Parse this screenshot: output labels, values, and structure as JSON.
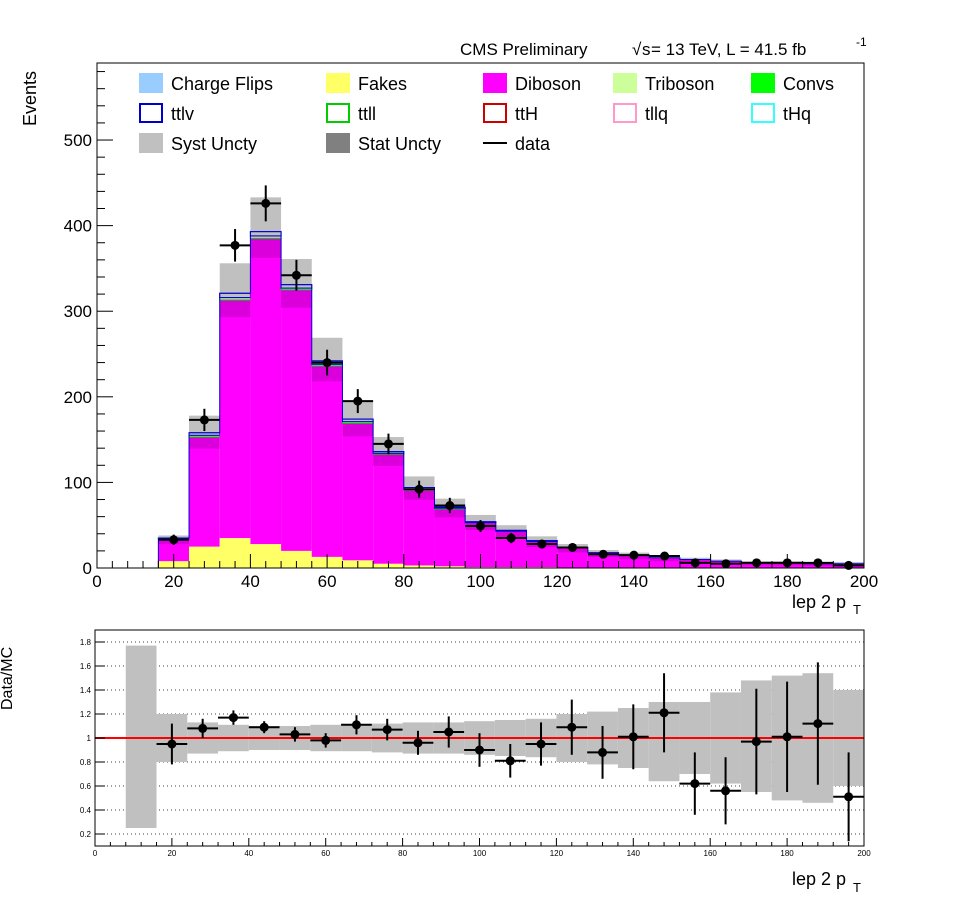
{
  "header": {
    "experiment": "CMS Preliminary",
    "sqrt_s": "s",
    "energy_lumi": " = 13 TeV, L = 41.5 fb",
    "lumi_exp": "-1"
  },
  "legend": [
    {
      "label": "Charge Flips",
      "style": "fill",
      "color": "#99ccff"
    },
    {
      "label": "Fakes",
      "style": "fill",
      "color": "#ffff66"
    },
    {
      "label": "Diboson",
      "style": "fill",
      "color": "#ff00ff"
    },
    {
      "label": "Triboson",
      "style": "fill",
      "color": "#ccff99"
    },
    {
      "label": "Convs",
      "style": "fill",
      "color": "#00ff00"
    },
    {
      "label": "ttlv",
      "style": "outline",
      "color": "#0000cc"
    },
    {
      "label": "ttll",
      "style": "outline",
      "color": "#00cc00"
    },
    {
      "label": "ttH",
      "style": "outline",
      "color": "#cc0000"
    },
    {
      "label": "tllq",
      "style": "outline",
      "color": "#ff99cc"
    },
    {
      "label": "tHq",
      "style": "outline",
      "color": "#33ffff"
    },
    {
      "label": "Syst Uncty",
      "style": "fill",
      "color": "#c0c0c0"
    },
    {
      "label": "Stat Uncty",
      "style": "fill",
      "color": "#808080"
    },
    {
      "label": "data",
      "style": "line",
      "color": "#000000"
    }
  ],
  "colors": {
    "diboson": "#ff00ff",
    "diboson_stat": "#cc00cc",
    "fakes": "#ffff66",
    "syst": "#c0c0c0",
    "ttlv": "#0000cc",
    "ttll": "#00cc00",
    "ratio_line": "#ff0000"
  },
  "chart_data": [
    {
      "type": "bar",
      "panel": "main",
      "ylabel": "Events",
      "xlabel": "lep 2 p",
      "xlabel_sub": "T",
      "xlim": [
        0,
        200
      ],
      "ylim": [
        0,
        590
      ],
      "x_ticks": [
        0,
        20,
        40,
        60,
        80,
        100,
        120,
        140,
        160,
        180,
        200
      ],
      "y_ticks": [
        0,
        100,
        200,
        300,
        400,
        500
      ],
      "bin_width": 8,
      "bin_edges": [
        0,
        8,
        16,
        24,
        32,
        40,
        48,
        56,
        64,
        72,
        80,
        88,
        96,
        104,
        112,
        120,
        128,
        136,
        144,
        152,
        160,
        168,
        176,
        184,
        192,
        200
      ],
      "series": [
        {
          "name": "Fakes",
          "values": [
            0,
            0,
            8,
            25,
            35,
            28,
            20,
            13,
            9,
            5,
            3,
            2,
            1,
            1,
            1,
            0,
            0,
            0,
            0,
            0,
            0,
            0,
            0,
            0,
            0
          ]
        },
        {
          "name": "Diboson",
          "values": [
            0,
            0,
            26,
            128,
            278,
            357,
            305,
            223,
            160,
            128,
            88,
            67,
            52,
            42,
            30,
            24,
            18,
            15,
            12,
            10,
            8,
            6,
            6,
            5,
            5
          ]
        },
        {
          "name": "ttlv",
          "values": [
            0,
            0,
            1,
            3,
            5,
            5,
            4,
            4,
            3,
            2,
            2,
            1,
            1,
            1,
            1,
            0,
            0,
            0,
            0,
            0,
            0,
            0,
            0,
            0,
            0
          ]
        },
        {
          "name": "ttll",
          "values": [
            0,
            0,
            0,
            2,
            3,
            3,
            2,
            2,
            2,
            1,
            1,
            1,
            0,
            0,
            0,
            0,
            0,
            0,
            0,
            0,
            0,
            0,
            0,
            0,
            0
          ]
        }
      ],
      "syst_uncertainty": [
        0,
        0,
        3,
        20,
        35,
        40,
        30,
        27,
        20,
        17,
        13,
        10,
        8,
        6,
        5,
        4,
        3,
        3,
        3,
        2,
        2,
        2,
        2,
        2,
        2
      ],
      "data": [
        {
          "x": 20,
          "y": 33,
          "err": 6
        },
        {
          "x": 28,
          "y": 173,
          "err": 13
        },
        {
          "x": 36,
          "y": 377,
          "err": 19
        },
        {
          "x": 44,
          "y": 426,
          "err": 21
        },
        {
          "x": 52,
          "y": 342,
          "err": 18
        },
        {
          "x": 60,
          "y": 240,
          "err": 15
        },
        {
          "x": 68,
          "y": 195,
          "err": 14
        },
        {
          "x": 76,
          "y": 145,
          "err": 12
        },
        {
          "x": 84,
          "y": 92,
          "err": 10
        },
        {
          "x": 92,
          "y": 73,
          "err": 9
        },
        {
          "x": 100,
          "y": 49,
          "err": 7
        },
        {
          "x": 108,
          "y": 35,
          "err": 6
        },
        {
          "x": 116,
          "y": 28,
          "err": 5
        },
        {
          "x": 124,
          "y": 24,
          "err": 5
        },
        {
          "x": 132,
          "y": 16,
          "err": 4
        },
        {
          "x": 140,
          "y": 15,
          "err": 4
        },
        {
          "x": 148,
          "y": 14,
          "err": 4
        },
        {
          "x": 156,
          "y": 6,
          "err": 3
        },
        {
          "x": 164,
          "y": 5,
          "err": 2
        },
        {
          "x": 172,
          "y": 6,
          "err": 2
        },
        {
          "x": 180,
          "y": 6,
          "err": 3
        },
        {
          "x": 188,
          "y": 6,
          "err": 3
        },
        {
          "x": 196,
          "y": 3,
          "err": 2
        }
      ]
    },
    {
      "type": "scatter",
      "panel": "ratio",
      "ylabel": "Data/MC",
      "xlabel": "lep 2 p",
      "xlabel_sub": "T",
      "xlim": [
        0,
        200
      ],
      "ylim": [
        0.1,
        1.9
      ],
      "grid": true,
      "x_ticks": [
        0,
        20,
        40,
        60,
        80,
        100,
        120,
        140,
        160,
        180,
        200
      ],
      "y_ticks": [
        "0.2",
        "0.4",
        "0.6",
        "0.8",
        "1",
        "1.2",
        "1.4",
        "1.6",
        "1.8"
      ],
      "reference_line": 1,
      "uncertainty_band": [
        {
          "x0": 8,
          "x1": 16,
          "lo": 0.25,
          "hi": 1.77
        },
        {
          "x0": 16,
          "x1": 24,
          "lo": 0.8,
          "hi": 1.2
        },
        {
          "x0": 24,
          "x1": 32,
          "lo": 0.87,
          "hi": 1.13
        },
        {
          "x0": 32,
          "x1": 40,
          "lo": 0.89,
          "hi": 1.11
        },
        {
          "x0": 40,
          "x1": 48,
          "lo": 0.9,
          "hi": 1.1
        },
        {
          "x0": 48,
          "x1": 56,
          "lo": 0.9,
          "hi": 1.1
        },
        {
          "x0": 56,
          "x1": 64,
          "lo": 0.89,
          "hi": 1.11
        },
        {
          "x0": 64,
          "x1": 72,
          "lo": 0.89,
          "hi": 1.11
        },
        {
          "x0": 72,
          "x1": 80,
          "lo": 0.88,
          "hi": 1.12
        },
        {
          "x0": 80,
          "x1": 88,
          "lo": 0.87,
          "hi": 1.13
        },
        {
          "x0": 88,
          "x1": 96,
          "lo": 0.87,
          "hi": 1.13
        },
        {
          "x0": 96,
          "x1": 104,
          "lo": 0.86,
          "hi": 1.14
        },
        {
          "x0": 104,
          "x1": 112,
          "lo": 0.85,
          "hi": 1.15
        },
        {
          "x0": 112,
          "x1": 120,
          "lo": 0.84,
          "hi": 1.16
        },
        {
          "x0": 120,
          "x1": 128,
          "lo": 0.8,
          "hi": 1.2
        },
        {
          "x0": 128,
          "x1": 136,
          "lo": 0.78,
          "hi": 1.22
        },
        {
          "x0": 136,
          "x1": 144,
          "lo": 0.75,
          "hi": 1.25
        },
        {
          "x0": 144,
          "x1": 152,
          "lo": 0.64,
          "hi": 1.3
        },
        {
          "x0": 152,
          "x1": 160,
          "lo": 0.7,
          "hi": 1.3
        },
        {
          "x0": 160,
          "x1": 168,
          "lo": 0.62,
          "hi": 1.38
        },
        {
          "x0": 168,
          "x1": 176,
          "lo": 0.55,
          "hi": 1.48
        },
        {
          "x0": 176,
          "x1": 184,
          "lo": 0.48,
          "hi": 1.52
        },
        {
          "x0": 184,
          "x1": 192,
          "lo": 0.46,
          "hi": 1.54
        },
        {
          "x0": 192,
          "x1": 200,
          "lo": 0.6,
          "hi": 1.4
        }
      ],
      "points": [
        {
          "x": 20,
          "y": 0.95,
          "err": 0.17
        },
        {
          "x": 28,
          "y": 1.08,
          "err": 0.08
        },
        {
          "x": 36,
          "y": 1.17,
          "err": 0.06
        },
        {
          "x": 44,
          "y": 1.09,
          "err": 0.05
        },
        {
          "x": 52,
          "y": 1.03,
          "err": 0.06
        },
        {
          "x": 60,
          "y": 0.98,
          "err": 0.06
        },
        {
          "x": 68,
          "y": 1.11,
          "err": 0.08
        },
        {
          "x": 76,
          "y": 1.07,
          "err": 0.09
        },
        {
          "x": 84,
          "y": 0.96,
          "err": 0.1
        },
        {
          "x": 92,
          "y": 1.05,
          "err": 0.13
        },
        {
          "x": 100,
          "y": 0.9,
          "err": 0.14
        },
        {
          "x": 108,
          "y": 0.81,
          "err": 0.14
        },
        {
          "x": 116,
          "y": 0.95,
          "err": 0.18
        },
        {
          "x": 124,
          "y": 1.09,
          "err": 0.23
        },
        {
          "x": 132,
          "y": 0.88,
          "err": 0.22
        },
        {
          "x": 140,
          "y": 1.01,
          "err": 0.27
        },
        {
          "x": 148,
          "y": 1.21,
          "err": 0.33
        },
        {
          "x": 156,
          "y": 0.62,
          "err": 0.26
        },
        {
          "x": 164,
          "y": 0.56,
          "err": 0.28
        },
        {
          "x": 172,
          "y": 0.97,
          "err": 0.44
        },
        {
          "x": 180,
          "y": 1.01,
          "err": 0.46
        },
        {
          "x": 188,
          "y": 1.12,
          "err": 0.51
        },
        {
          "x": 196,
          "y": 0.51,
          "err": 0.37
        }
      ]
    }
  ]
}
